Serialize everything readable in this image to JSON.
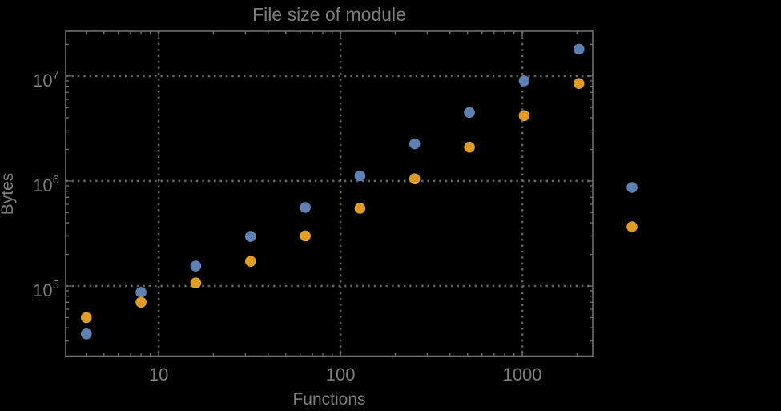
{
  "window": {
    "background": "#000000"
  },
  "style": {
    "frame_color": "#6e6e6e",
    "grid_color": "#626262",
    "tick_color": "#6e6e6e",
    "text_color": "#7d7d7d",
    "series1_color": "#5e81b5",
    "series2_color": "#e19c24"
  },
  "chart_data": {
    "type": "scatter",
    "title": "File size of module",
    "xlabel": "Functions",
    "ylabel": "Bytes",
    "xscale": "log",
    "yscale": "log",
    "xlim": [
      3.08,
      2440
    ],
    "ylim": [
      21500,
      26700000
    ],
    "grid": true,
    "grid_style": "dotted",
    "x_ticks": [
      {
        "value": 10,
        "label": "10"
      },
      {
        "value": 100,
        "label": "100"
      },
      {
        "value": 1000,
        "label": "1000"
      }
    ],
    "y_ticks": [
      {
        "value": 100000,
        "label": "10^5",
        "mantissa": "10",
        "exponent": "5"
      },
      {
        "value": 1000000,
        "label": "10^6",
        "mantissa": "10",
        "exponent": "6"
      },
      {
        "value": 10000000,
        "label": "10^7",
        "mantissa": "10",
        "exponent": "7"
      }
    ],
    "series": [
      {
        "name": "series-1",
        "color": "#5e81b5",
        "points": [
          [
            4,
            35000
          ],
          [
            8,
            87000
          ],
          [
            16,
            155000
          ],
          [
            32,
            297000
          ],
          [
            64,
            560000
          ],
          [
            128,
            1120000
          ],
          [
            256,
            2260000
          ],
          [
            512,
            4500000
          ],
          [
            1024,
            9000000
          ],
          [
            2048,
            18000000
          ]
        ]
      },
      {
        "name": "series-2",
        "color": "#e19c24",
        "points": [
          [
            4,
            50000
          ],
          [
            8,
            70000
          ],
          [
            16,
            107000
          ],
          [
            32,
            172000
          ],
          [
            64,
            300000
          ],
          [
            128,
            550000
          ],
          [
            256,
            1050000
          ],
          [
            512,
            2100000
          ],
          [
            1024,
            4200000
          ],
          [
            2048,
            8500000
          ]
        ]
      }
    ],
    "legend": {
      "position": "outside-right",
      "entries": [
        {
          "series": "series-1",
          "label": "",
          "color": "#5e81b5"
        },
        {
          "series": "series-2",
          "label": "",
          "color": "#e19c24"
        }
      ]
    }
  }
}
